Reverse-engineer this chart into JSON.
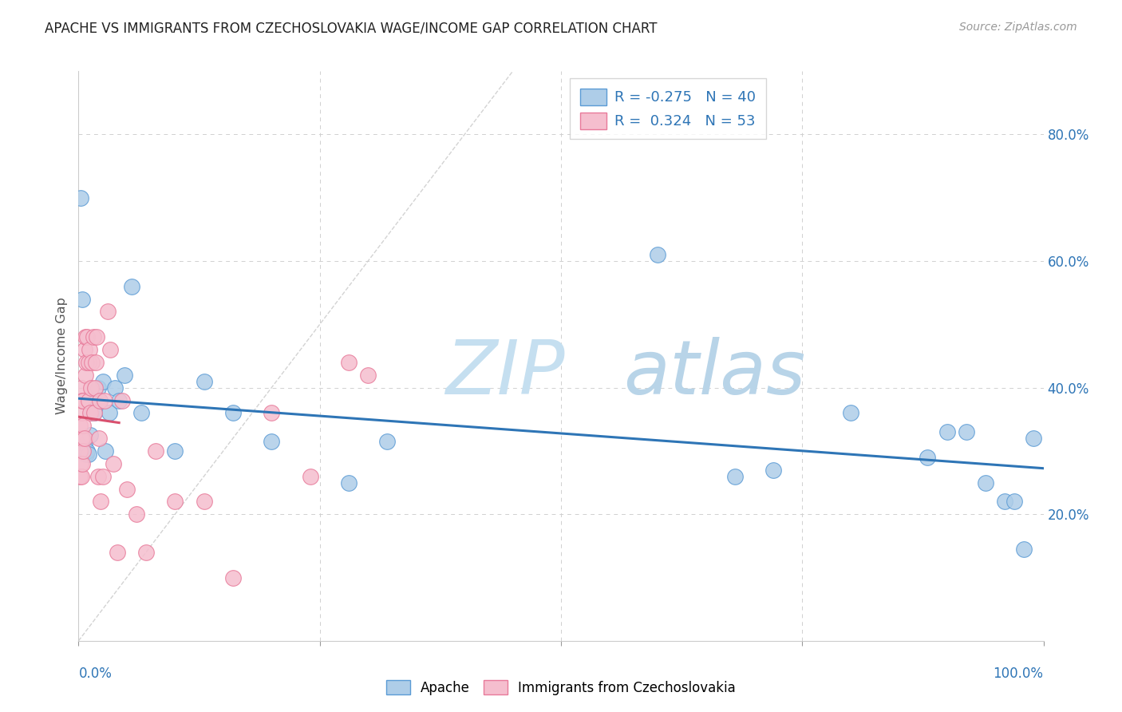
{
  "title": "APACHE VS IMMIGRANTS FROM CZECHOSLOVAKIA WAGE/INCOME GAP CORRELATION CHART",
  "source": "Source: ZipAtlas.com",
  "ylabel": "Wage/Income Gap",
  "watermark_zip": "ZIP",
  "watermark_atlas": "atlas",
  "legend_apache_R": "-0.275",
  "legend_apache_N": "40",
  "legend_czech_R": "0.324",
  "legend_czech_N": "53",
  "apache_color": "#aecde8",
  "czech_color": "#f5bece",
  "apache_edge_color": "#5b9bd5",
  "czech_edge_color": "#e87a9a",
  "apache_line_color": "#2e75b6",
  "czech_line_color": "#d9506e",
  "background_color": "#ffffff",
  "grid_color": "#d0d0d0",
  "right_axis_color": "#2e75b6",
  "apache_x": [
    0.002,
    0.004,
    0.005,
    0.006,
    0.007,
    0.008,
    0.009,
    0.01,
    0.012,
    0.014,
    0.016,
    0.018,
    0.02,
    0.022,
    0.025,
    0.028,
    0.032,
    0.038,
    0.042,
    0.048,
    0.055,
    0.065,
    0.1,
    0.13,
    0.16,
    0.2,
    0.28,
    0.32,
    0.6,
    0.68,
    0.72,
    0.8,
    0.88,
    0.9,
    0.92,
    0.94,
    0.96,
    0.97,
    0.98,
    0.99
  ],
  "apache_y": [
    0.7,
    0.54,
    0.3,
    0.31,
    0.3,
    0.295,
    0.3,
    0.295,
    0.325,
    0.36,
    0.36,
    0.38,
    0.4,
    0.38,
    0.41,
    0.3,
    0.36,
    0.4,
    0.38,
    0.42,
    0.56,
    0.36,
    0.3,
    0.41,
    0.36,
    0.315,
    0.25,
    0.315,
    0.61,
    0.26,
    0.27,
    0.36,
    0.29,
    0.33,
    0.33,
    0.25,
    0.22,
    0.22,
    0.145,
    0.32
  ],
  "czech_x": [
    0.001,
    0.001,
    0.001,
    0.002,
    0.002,
    0.003,
    0.003,
    0.003,
    0.004,
    0.004,
    0.004,
    0.005,
    0.005,
    0.005,
    0.006,
    0.006,
    0.007,
    0.007,
    0.008,
    0.009,
    0.01,
    0.01,
    0.011,
    0.012,
    0.013,
    0.014,
    0.015,
    0.016,
    0.017,
    0.018,
    0.019,
    0.02,
    0.021,
    0.022,
    0.023,
    0.025,
    0.027,
    0.03,
    0.033,
    0.036,
    0.04,
    0.045,
    0.05,
    0.06,
    0.07,
    0.08,
    0.1,
    0.13,
    0.16,
    0.2,
    0.24,
    0.28,
    0.3
  ],
  "czech_y": [
    0.26,
    0.3,
    0.34,
    0.28,
    0.32,
    0.26,
    0.36,
    0.4,
    0.28,
    0.32,
    0.38,
    0.3,
    0.34,
    0.38,
    0.32,
    0.46,
    0.42,
    0.48,
    0.44,
    0.48,
    0.38,
    0.44,
    0.46,
    0.36,
    0.4,
    0.44,
    0.48,
    0.36,
    0.4,
    0.44,
    0.48,
    0.26,
    0.32,
    0.38,
    0.22,
    0.26,
    0.38,
    0.52,
    0.46,
    0.28,
    0.14,
    0.38,
    0.24,
    0.2,
    0.14,
    0.3,
    0.22,
    0.22,
    0.1,
    0.36,
    0.26,
    0.44,
    0.42
  ],
  "xlim": [
    0.0,
    1.0
  ],
  "ylim": [
    0.0,
    0.9
  ],
  "ytick_vals": [
    0.0,
    0.2,
    0.4,
    0.6,
    0.8
  ],
  "ytick_labels": [
    "",
    "20.0%",
    "40.0%",
    "60.0%",
    "80.0%"
  ],
  "diag_line_color": "#c8c8c8"
}
